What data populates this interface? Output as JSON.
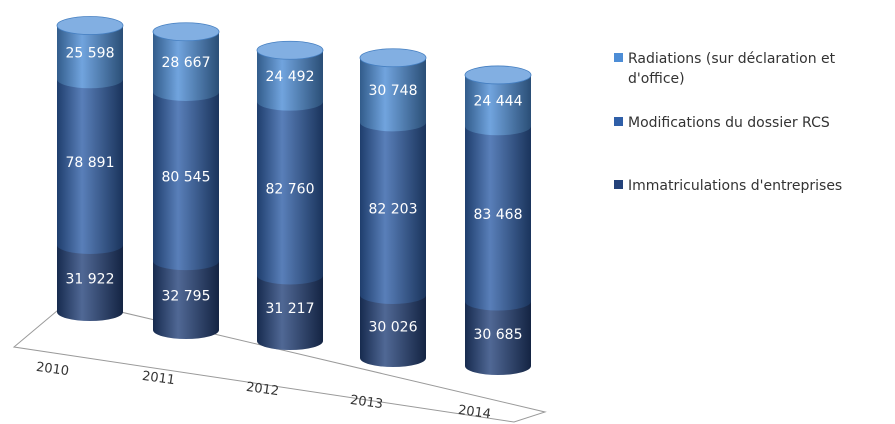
{
  "chart_data": {
    "type": "bar",
    "stacked": true,
    "style": "3d-cylinder",
    "title": "",
    "xlabel": "",
    "ylabel": "",
    "grid": false,
    "legend_position": "right",
    "categories": [
      "2010",
      "2011",
      "2012",
      "2013",
      "2014"
    ],
    "series": [
      {
        "name": "Immatriculations d'entreprises",
        "values": [
          31922,
          32795,
          31217,
          30026,
          30685
        ],
        "color": "#24427a",
        "labels": [
          "31 922",
          "32 795",
          "31 217",
          "30 026",
          "30 685"
        ]
      },
      {
        "name": "Modifications du dossier RCS",
        "values": [
          78891,
          80545,
          82760,
          82203,
          83468
        ],
        "color": "#2f5fa8",
        "labels": [
          "78 891",
          "80 545",
          "82 760",
          "82 203",
          "83 468"
        ]
      },
      {
        "name": "Radiations (sur déclaration et d'office)",
        "values": [
          25598,
          28667,
          24492,
          30748,
          24444
        ],
        "color": "#4d8dd6",
        "labels": [
          "25 598",
          "28 667",
          "24 492",
          "30 748",
          "24 444"
        ]
      }
    ],
    "legend": {
      "lines": [
        [
          "Radiations (sur déclaration et",
          "d'office)"
        ],
        [
          "Modifications du dossier RCS"
        ],
        [
          "Immatriculations d'entreprises"
        ]
      ],
      "colors": [
        "#4d8dd6",
        "#2f5fa8",
        "#24427a"
      ]
    }
  }
}
